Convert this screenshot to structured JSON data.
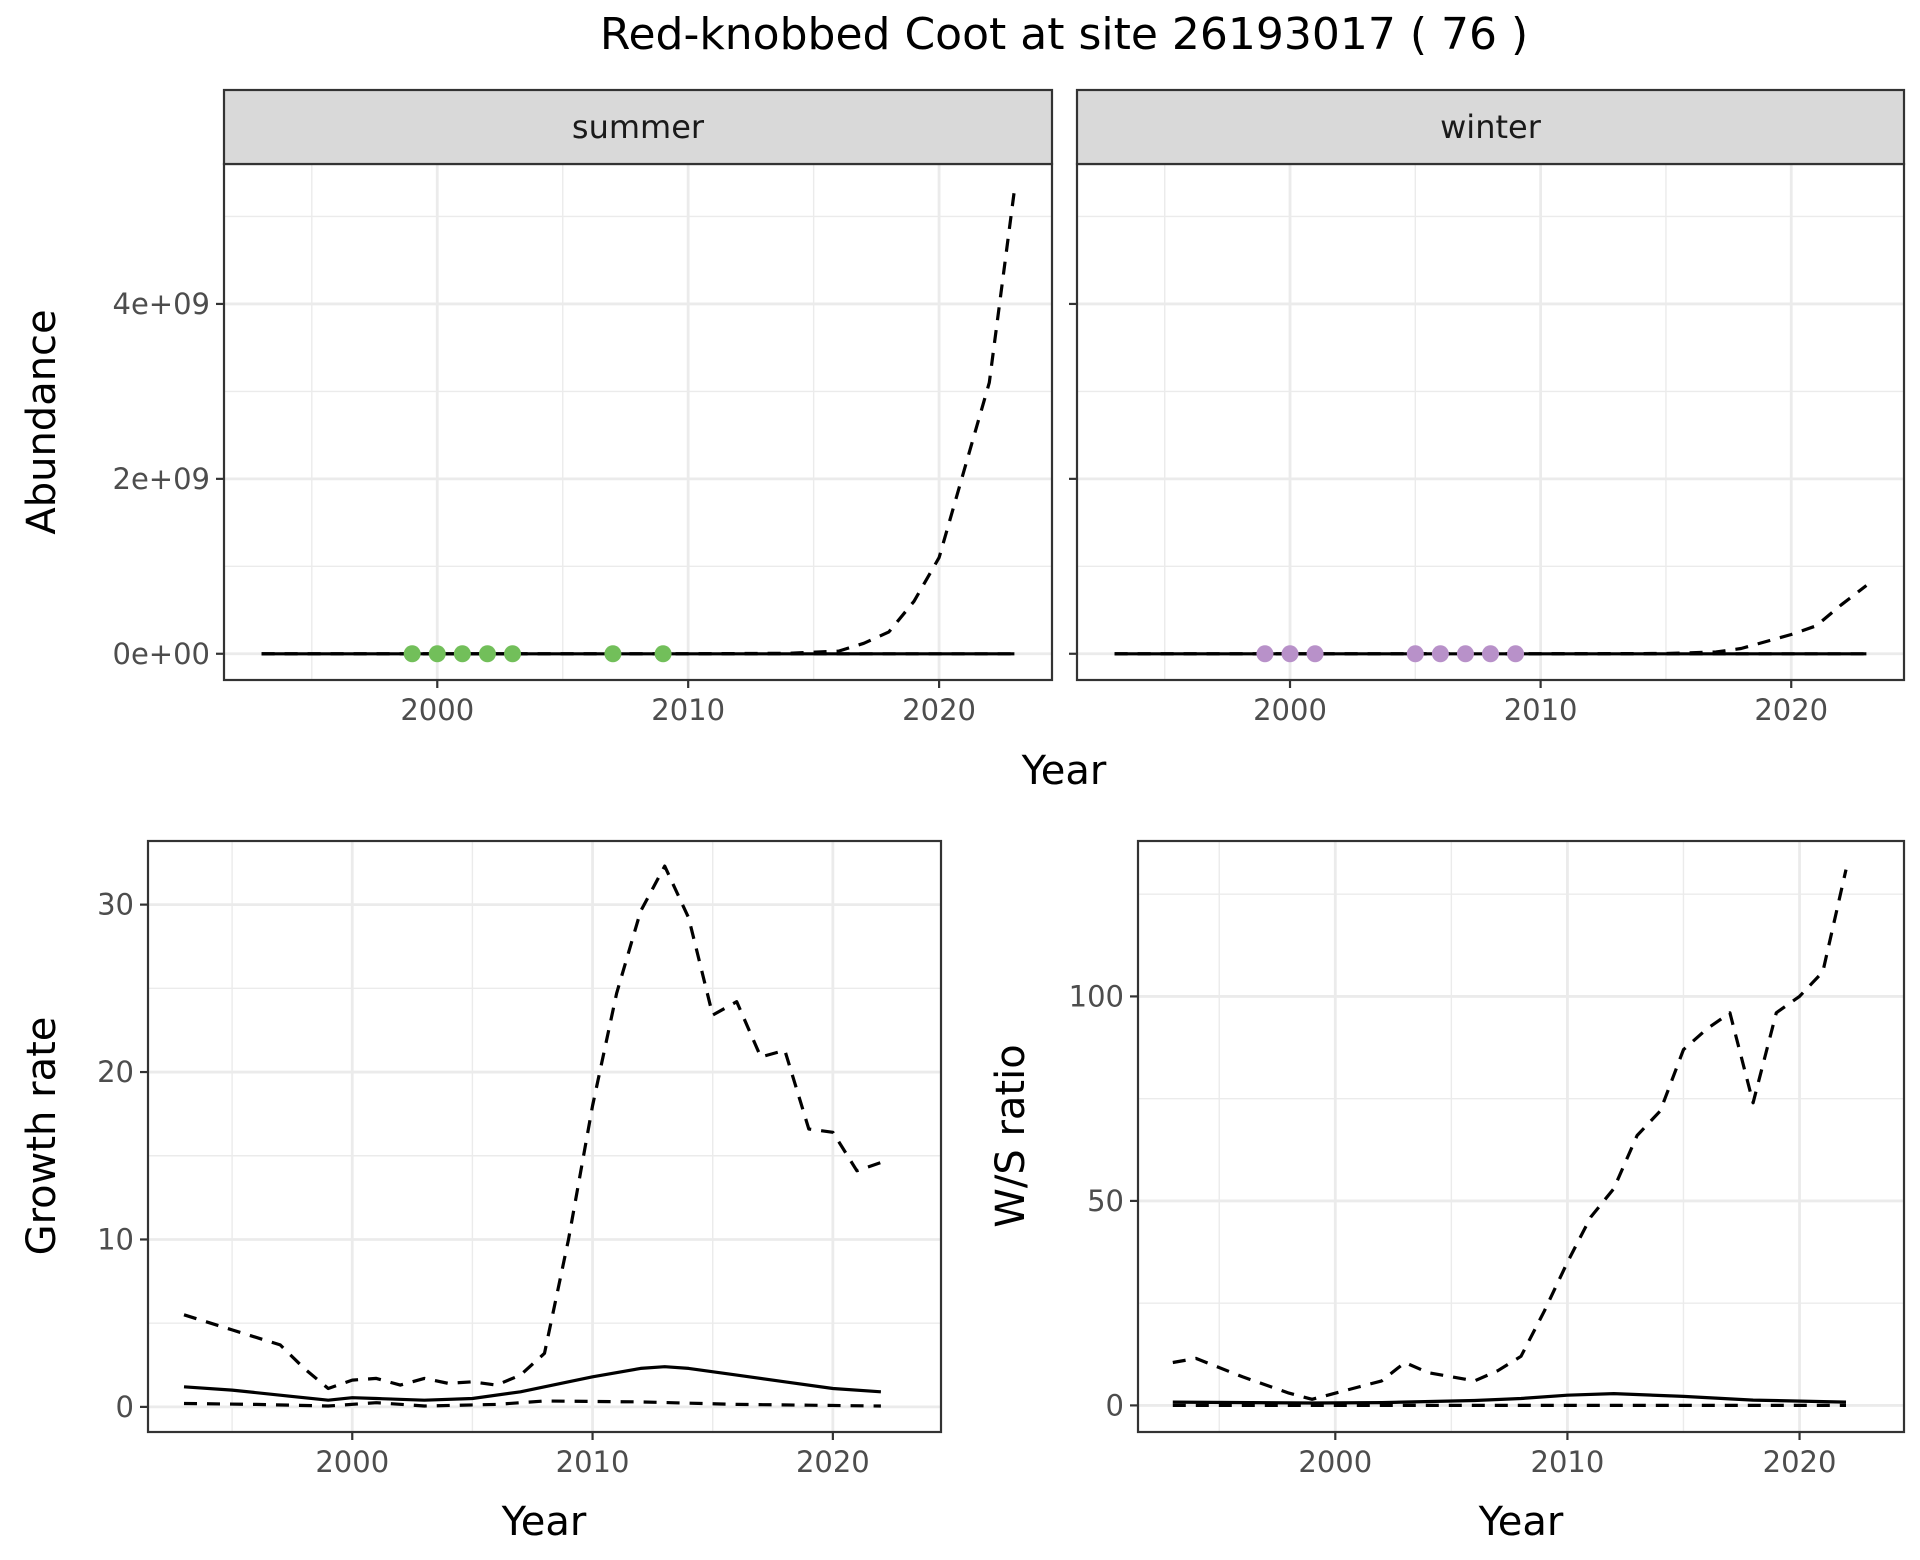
{
  "title": "Red-knobbed Coot at site 26193017 ( 76 )",
  "colors": {
    "summer_points": "#72bf5a",
    "winter_points": "#b891c9",
    "line": "#000000",
    "strip_fill": "#d9d9d9",
    "grid": "#ebebeb"
  },
  "chart_data": [
    {
      "type": "line",
      "panel": "summer",
      "strip": "summer",
      "xlabel": "Year",
      "ylabel": "Abundance",
      "xlim": [
        1991.5,
        2024.5
      ],
      "ylim": [
        -300000000.0,
        5600000000.0
      ],
      "x_ticks": [
        2000,
        2010,
        2020
      ],
      "x_tick_labels": [
        "2000",
        "2010",
        "2020"
      ],
      "y_ticks": [
        0,
        2000000000.0,
        4000000000.0
      ],
      "y_tick_labels": [
        "0e+00",
        "2e+09",
        "4e+09"
      ],
      "grid": true,
      "series": [
        {
          "style": "dashed",
          "x": [
            1993,
            1995,
            2000,
            2005,
            2010,
            2014,
            2016,
            2017,
            2018,
            2019,
            2020,
            2021,
            2022,
            2023
          ],
          "y": [
            0,
            0,
            0,
            0,
            0,
            5000000.0,
            30000000.0,
            120000000.0,
            250000000.0,
            600000000.0,
            1100000000.0,
            2100000000.0,
            3100000000.0,
            5300000000.0
          ]
        },
        {
          "style": "solid",
          "x": [
            1993,
            2023
          ],
          "y": [
            0,
            0
          ]
        },
        {
          "style": "dashed",
          "x": [
            1993,
            2023
          ],
          "y": [
            0,
            0
          ]
        }
      ],
      "points": {
        "color": "#72bf5a",
        "x": [
          1999,
          2000,
          2001,
          2002,
          2003,
          2007,
          2009
        ],
        "y": [
          0,
          0,
          0,
          0,
          0,
          0,
          0
        ]
      }
    },
    {
      "type": "line",
      "panel": "winter",
      "strip": "winter",
      "xlabel": "Year",
      "xlim": [
        1991.5,
        2024.5
      ],
      "ylim": [
        -300000000.0,
        5600000000.0
      ],
      "x_ticks": [
        2000,
        2010,
        2020
      ],
      "x_tick_labels": [
        "2000",
        "2010",
        "2020"
      ],
      "y_ticks": [
        0,
        2000000000.0,
        4000000000.0
      ],
      "grid": true,
      "series": [
        {
          "style": "dashed",
          "x": [
            1993,
            2000,
            2010,
            2015,
            2017,
            2018,
            2019,
            2020,
            2021,
            2022,
            2023
          ],
          "y": [
            0,
            0,
            0,
            3000000.0,
            20000000.0,
            60000000.0,
            140000000.0,
            220000000.0,
            320000000.0,
            560000000.0,
            780000000.0
          ]
        },
        {
          "style": "solid",
          "x": [
            1993,
            2023
          ],
          "y": [
            0,
            0
          ]
        },
        {
          "style": "dashed",
          "x": [
            1993,
            2023
          ],
          "y": [
            0,
            0
          ]
        }
      ],
      "points": {
        "color": "#b891c9",
        "x": [
          1999,
          2000,
          2001,
          2005,
          2006,
          2007,
          2008,
          2009
        ],
        "y": [
          0,
          0,
          0,
          0,
          0,
          0,
          0,
          0
        ]
      }
    },
    {
      "type": "line",
      "panel": "growth",
      "xlabel": "Year",
      "ylabel": "Growth rate",
      "xlim": [
        1991.5,
        2024.5
      ],
      "ylim": [
        -1.5,
        33.8
      ],
      "x_ticks": [
        2000,
        2010,
        2020
      ],
      "x_tick_labels": [
        "2000",
        "2010",
        "2020"
      ],
      "y_ticks": [
        0,
        10,
        20,
        30
      ],
      "y_tick_labels": [
        "0",
        "10",
        "20",
        "30"
      ],
      "grid": true,
      "series": [
        {
          "style": "dashed",
          "x": [
            1993,
            1995,
            1997,
            1998,
            1999,
            2000,
            2001,
            2002,
            2003,
            2004,
            2005,
            2006,
            2007,
            2008,
            2009,
            2010,
            2011,
            2012,
            2013,
            2014,
            2015,
            2016,
            2017,
            2018,
            2019,
            2020,
            2021,
            2022
          ],
          "y": [
            5.5,
            4.6,
            3.7,
            2.3,
            1.1,
            1.6,
            1.7,
            1.3,
            1.7,
            1.4,
            1.5,
            1.3,
            1.9,
            3.2,
            10.0,
            18.0,
            24.7,
            29.6,
            32.3,
            29.2,
            23.4,
            24.2,
            20.9,
            21.3,
            16.6,
            16.4,
            14.1,
            14.6
          ]
        },
        {
          "style": "solid",
          "x": [
            1993,
            1995,
            1997,
            1999,
            2000,
            2001,
            2003,
            2005,
            2007,
            2009,
            2010,
            2012,
            2013,
            2014,
            2016,
            2018,
            2020,
            2022
          ],
          "y": [
            1.2,
            1.0,
            0.7,
            0.4,
            0.55,
            0.5,
            0.4,
            0.5,
            0.9,
            1.5,
            1.8,
            2.3,
            2.4,
            2.3,
            1.9,
            1.5,
            1.1,
            0.9
          ]
        },
        {
          "style": "dashed",
          "x": [
            1993,
            1996,
            1999,
            2001,
            2003,
            2006,
            2008,
            2012,
            2016,
            2019,
            2022
          ],
          "y": [
            0.2,
            0.15,
            0.05,
            0.25,
            0.05,
            0.15,
            0.35,
            0.3,
            0.15,
            0.1,
            0.05
          ]
        }
      ]
    },
    {
      "type": "line",
      "panel": "ratio",
      "xlabel": "Year",
      "ylabel": "W/S ratio",
      "xlim": [
        1991.5,
        2024.5
      ],
      "ylim": [
        -6.5,
        138
      ],
      "x_ticks": [
        2000,
        2010,
        2020
      ],
      "x_tick_labels": [
        "2000",
        "2010",
        "2020"
      ],
      "y_ticks": [
        0,
        50,
        100
      ],
      "y_tick_labels": [
        "0",
        "50",
        "100"
      ],
      "grid": true,
      "series": [
        {
          "style": "dashed",
          "x": [
            1993,
            1994,
            1996,
            1998,
            1999,
            2001,
            2002,
            2003,
            2004,
            2006,
            2007,
            2008,
            2009,
            2010,
            2011,
            2012,
            2013,
            2014,
            2015,
            2016,
            2017,
            2018,
            2019,
            2020,
            2021,
            2022
          ],
          "y": [
            10.5,
            11.5,
            7.0,
            3.0,
            1.5,
            4.5,
            6.0,
            10.5,
            8.0,
            6.0,
            8.5,
            12.0,
            23.0,
            35.0,
            46.0,
            53.0,
            66.0,
            72.0,
            87.0,
            92.0,
            96.0,
            74.0,
            96.0,
            100.0,
            106.0,
            131.0
          ]
        },
        {
          "style": "solid",
          "x": [
            1993,
            1999,
            2002,
            2006,
            2008,
            2010,
            2012,
            2015,
            2018,
            2022
          ],
          "y": [
            0.8,
            0.6,
            0.7,
            1.2,
            1.7,
            2.5,
            2.9,
            2.2,
            1.3,
            0.8
          ]
        },
        {
          "style": "dashed",
          "x": [
            1993,
            2022
          ],
          "y": [
            0,
            0
          ]
        }
      ]
    }
  ]
}
